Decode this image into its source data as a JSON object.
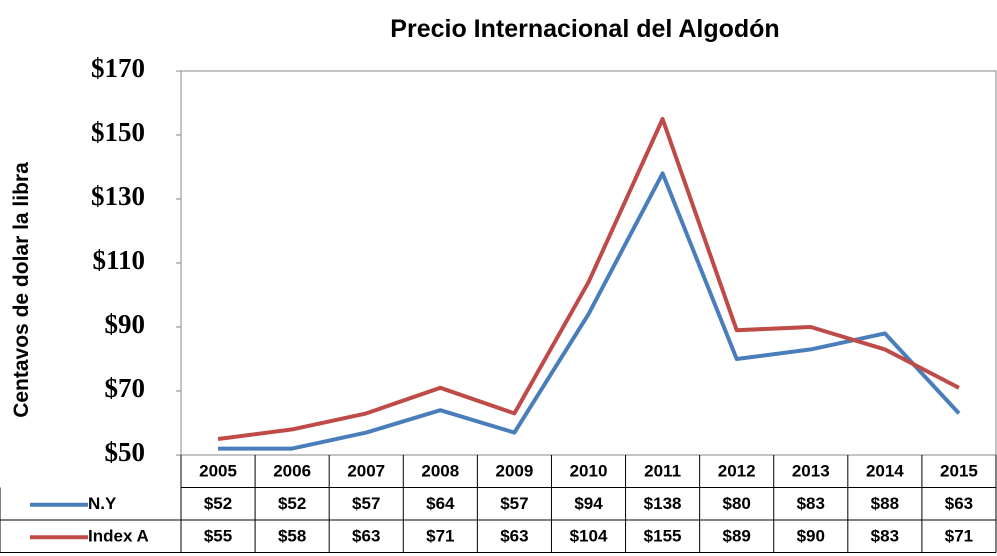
{
  "chart_data": {
    "type": "line",
    "title": "Precio Internacional del Algodón",
    "y_label": "Centavos de dolar la libra",
    "categories": [
      "2005",
      "2006",
      "2007",
      "2008",
      "2009",
      "2010",
      "2011",
      "2012",
      "2013",
      "2014",
      "2015"
    ],
    "series": [
      {
        "name": "N.Y",
        "color": "#4a7ebb",
        "values": [
          52,
          52,
          57,
          64,
          57,
          94,
          138,
          80,
          83,
          88,
          63
        ],
        "value_labels": [
          "$52",
          "$52",
          "$57",
          "$64",
          "$57",
          "$94",
          "$138",
          "$80",
          "$83",
          "$88",
          "$63"
        ]
      },
      {
        "name": "Index A",
        "color": "#be4b48",
        "values": [
          55,
          58,
          63,
          71,
          63,
          104,
          155,
          89,
          90,
          83,
          71
        ],
        "value_labels": [
          "$55",
          "$58",
          "$63",
          "$71",
          "$63",
          "$104",
          "$155",
          "$89",
          "$90",
          "$83",
          "$71"
        ]
      }
    ],
    "ylim": [
      50,
      170
    ],
    "yticks": [
      {
        "value": 50,
        "label": "$50"
      },
      {
        "value": 70,
        "label": "$70"
      },
      {
        "value": 90,
        "label": "$90"
      },
      {
        "value": 110,
        "label": "$110"
      },
      {
        "value": 130,
        "label": "$130"
      },
      {
        "value": 150,
        "label": "$150"
      },
      {
        "value": 170,
        "label": "$170"
      }
    ]
  }
}
